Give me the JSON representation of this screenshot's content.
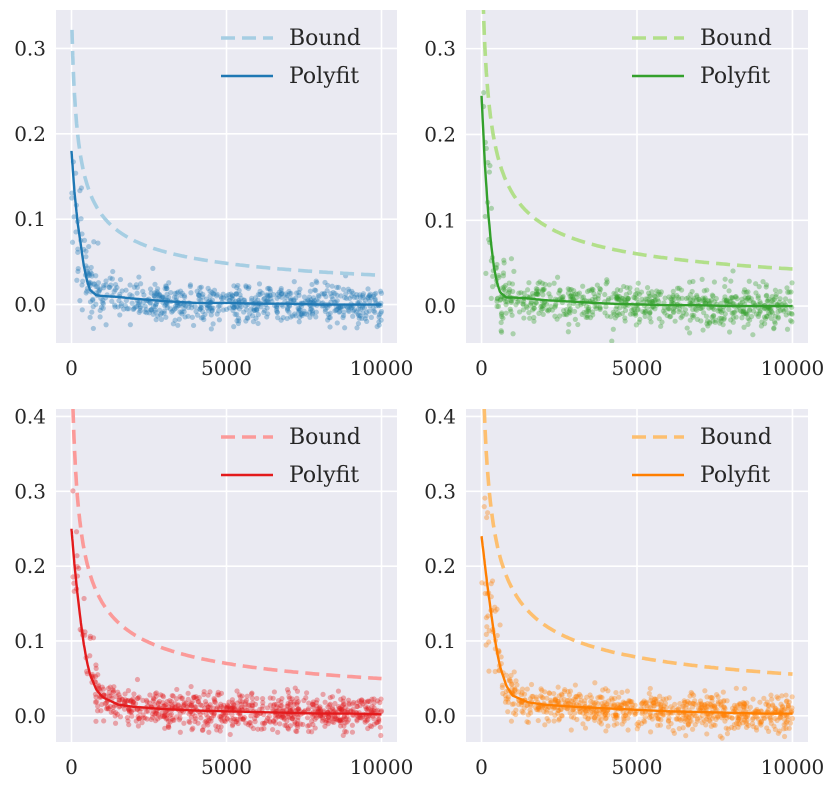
{
  "chart_data": [
    {
      "type": "scatter",
      "xlim": [
        -500,
        10500
      ],
      "ylim": [
        -0.045,
        0.345
      ],
      "xticks": [
        0,
        5000,
        10000
      ],
      "xtick_labels": [
        "0",
        "5000",
        "10000"
      ],
      "yticks": [
        0.0,
        0.1,
        0.2,
        0.3
      ],
      "ytick_labels": [
        "0.0",
        "0.1",
        "0.2",
        "0.3"
      ],
      "grid": true,
      "legend_position": "top-right",
      "series": [
        {
          "name": "Bound",
          "kind": "dashed-line",
          "color": "#a6cee3",
          "c": 3.45,
          "x": [
            0,
            50,
            150,
            300,
            600,
            1000,
            2000,
            3000,
            5000,
            7000,
            10000
          ],
          "values": [
            0.33,
            0.3,
            0.25,
            0.2,
            0.14,
            0.11,
            0.077,
            0.063,
            0.049,
            0.041,
            0.036
          ]
        },
        {
          "name": "Polyfit",
          "kind": "solid-line",
          "color": "#1f78b4",
          "x": [
            0,
            100,
            200,
            300,
            400,
            500,
            600,
            800,
            1000,
            1500,
            2000,
            3000,
            4000,
            5000,
            6000,
            7000,
            8000,
            9000,
            10000
          ],
          "values": [
            0.18,
            0.13,
            0.095,
            0.07,
            0.045,
            0.028,
            0.017,
            0.011,
            0.01,
            0.009,
            0.007,
            0.004,
            0.002,
            0.002,
            0.001,
            0.001,
            0.0,
            0.0,
            0.0
          ]
        },
        {
          "name": "",
          "kind": "scatter",
          "color": "#1f78b4",
          "n": 700,
          "seed": 11,
          "noise": 0.012
        }
      ]
    },
    {
      "type": "scatter",
      "xlim": [
        -500,
        10500
      ],
      "ylim": [
        -0.043,
        0.345
      ],
      "xticks": [
        0,
        5000,
        10000
      ],
      "xtick_labels": [
        "0",
        "5000",
        "10000"
      ],
      "yticks": [
        0.0,
        0.1,
        0.2,
        0.3
      ],
      "ytick_labels": [
        "0.0",
        "0.1",
        "0.2",
        "0.3"
      ],
      "grid": true,
      "legend_position": "top-right",
      "series": [
        {
          "name": "Bound",
          "kind": "dashed-line",
          "color": "#b2df8a",
          "c": 4.35,
          "x": [
            0,
            50,
            150,
            300,
            600,
            1000,
            2000,
            3000,
            5000,
            7000,
            10000
          ],
          "values": [
            0.345,
            0.31,
            0.26,
            0.22,
            0.17,
            0.135,
            0.097,
            0.079,
            0.061,
            0.052,
            0.044
          ]
        },
        {
          "name": "Polyfit",
          "kind": "solid-line",
          "color": "#33a02c",
          "x": [
            0,
            100,
            200,
            300,
            400,
            500,
            600,
            800,
            1000,
            1500,
            2000,
            3000,
            4000,
            5000,
            6000,
            7000,
            8000,
            9000,
            10000
          ],
          "values": [
            0.245,
            0.17,
            0.115,
            0.075,
            0.045,
            0.027,
            0.016,
            0.01,
            0.01,
            0.009,
            0.007,
            0.005,
            0.003,
            0.002,
            0.001,
            0.001,
            0.0,
            0.0,
            0.0
          ]
        },
        {
          "name": "",
          "kind": "scatter",
          "color": "#33a02c",
          "n": 700,
          "seed": 23,
          "noise": 0.012
        }
      ]
    },
    {
      "type": "scatter",
      "xlim": [
        -500,
        10500
      ],
      "ylim": [
        -0.035,
        0.41
      ],
      "xticks": [
        0,
        5000,
        10000
      ],
      "xtick_labels": [
        "0",
        "5000",
        "10000"
      ],
      "yticks": [
        0.0,
        0.1,
        0.2,
        0.3,
        0.4
      ],
      "ytick_labels": [
        "0.0",
        "0.1",
        "0.2",
        "0.3",
        "0.4"
      ],
      "grid": true,
      "legend_position": "top-right",
      "series": [
        {
          "name": "Bound",
          "kind": "dashed-line",
          "color": "#fb9a99",
          "c": 5.0,
          "x": [
            0,
            50,
            150,
            300,
            600,
            1000,
            2000,
            3000,
            5000,
            7000,
            10000
          ],
          "values": [
            0.35,
            0.33,
            0.28,
            0.24,
            0.19,
            0.155,
            0.11,
            0.09,
            0.07,
            0.06,
            0.05
          ]
        },
        {
          "name": "Polyfit",
          "kind": "solid-line",
          "color": "#e31a1c",
          "x": [
            0,
            100,
            200,
            300,
            400,
            500,
            600,
            800,
            1000,
            1500,
            2000,
            3000,
            4000,
            5000,
            6000,
            7000,
            8000,
            9000,
            10000
          ],
          "values": [
            0.25,
            0.2,
            0.16,
            0.125,
            0.095,
            0.072,
            0.055,
            0.035,
            0.025,
            0.015,
            0.012,
            0.009,
            0.007,
            0.006,
            0.005,
            0.004,
            0.003,
            0.003,
            0.002
          ]
        },
        {
          "name": "",
          "kind": "scatter",
          "color": "#e31a1c",
          "n": 800,
          "seed": 37,
          "noise": 0.012
        }
      ]
    },
    {
      "type": "scatter",
      "xlim": [
        -500,
        10500
      ],
      "ylim": [
        -0.035,
        0.41
      ],
      "xticks": [
        0,
        5000,
        10000
      ],
      "xtick_labels": [
        "0",
        "5000",
        "10000"
      ],
      "yticks": [
        0.0,
        0.1,
        0.2,
        0.3,
        0.4
      ],
      "ytick_labels": [
        "0.0",
        "0.1",
        "0.2",
        "0.3",
        "0.4"
      ],
      "grid": true,
      "legend_position": "top-right",
      "series": [
        {
          "name": "Bound",
          "kind": "dashed-line",
          "color": "#fdbf6f",
          "c": 5.6,
          "x": [
            0,
            50,
            150,
            300,
            600,
            1000,
            2000,
            3000,
            5000,
            7000,
            10000
          ],
          "values": [
            0.33,
            0.32,
            0.28,
            0.25,
            0.2,
            0.165,
            0.12,
            0.1,
            0.078,
            0.066,
            0.056
          ]
        },
        {
          "name": "Polyfit",
          "kind": "solid-line",
          "color": "#ff7f00",
          "x": [
            0,
            100,
            200,
            300,
            400,
            500,
            600,
            800,
            1000,
            1500,
            2000,
            3000,
            4000,
            5000,
            6000,
            7000,
            8000,
            9000,
            10000
          ],
          "values": [
            0.24,
            0.205,
            0.17,
            0.14,
            0.11,
            0.085,
            0.065,
            0.04,
            0.027,
            0.018,
            0.015,
            0.012,
            0.01,
            0.008,
            0.006,
            0.005,
            0.004,
            0.003,
            0.003
          ]
        },
        {
          "name": "",
          "kind": "scatter",
          "color": "#ff7f00",
          "n": 800,
          "seed": 53,
          "noise": 0.012
        }
      ]
    }
  ]
}
